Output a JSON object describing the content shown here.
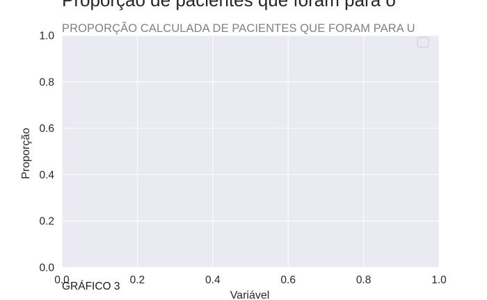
{
  "chart_data": {
    "type": "bar",
    "title": "Proporção de pacientes que foram para o",
    "subtitle": "PROPORÇÃO CALCULADA DE PACIENTES QUE FORAM PARA U",
    "xlabel": "Variável",
    "ylabel": "Proporção",
    "xlim": [
      0.0,
      1.0
    ],
    "ylim": [
      0.0,
      1.0
    ],
    "xticks": [
      "0.0",
      "0.2",
      "0.4",
      "0.6",
      "0.8",
      "1.0"
    ],
    "yticks": [
      "0.0",
      "0.2",
      "0.4",
      "0.6",
      "0.8",
      "1.0"
    ],
    "categories": [],
    "values": [],
    "grid": true,
    "legend_position": "top-right",
    "caption": "GRÁFICO 3",
    "colors": {
      "plot_background": "#eaeaf2",
      "grid": "#ffffff",
      "text": "#262626",
      "subtitle": "#808080"
    }
  }
}
